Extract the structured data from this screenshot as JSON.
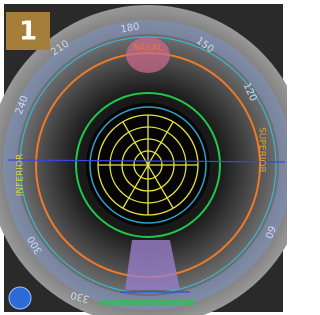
{
  "badge": "1",
  "labels": {
    "nasal": "NASAL",
    "inferior": "INFERIOR",
    "superior": "SUPERIOR"
  },
  "dial": [
    "180",
    "150",
    "120",
    "60",
    "330",
    "300",
    "240",
    "210"
  ]
}
